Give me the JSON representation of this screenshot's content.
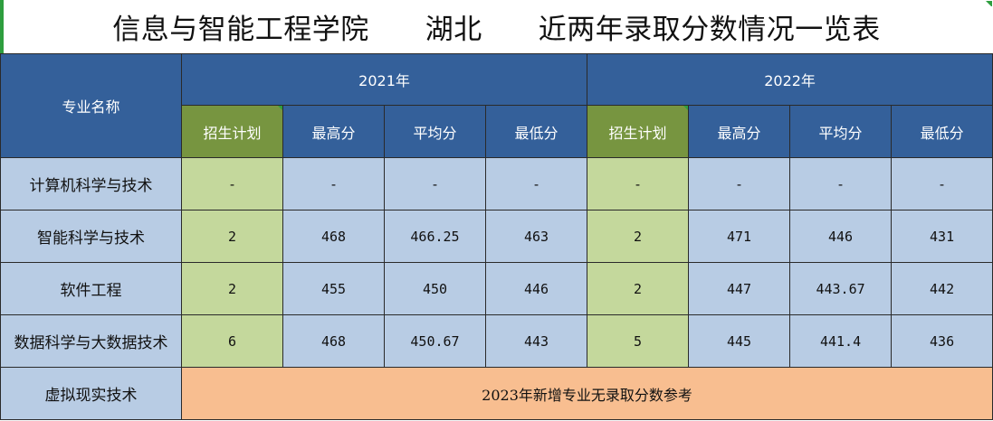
{
  "title": {
    "part1": "信息与智能工程学院",
    "part2": "湖北",
    "part3": "近两年录取分数情况一览表"
  },
  "table": {
    "major_header": "专业名称",
    "years": [
      "2021年",
      "2022年"
    ],
    "sub_headers": [
      "招生计划",
      "最高分",
      "平均分",
      "最低分"
    ],
    "rows": [
      {
        "name": "计算机科学与技术",
        "y2021": [
          "-",
          "-",
          "-",
          "-"
        ],
        "y2022": [
          "-",
          "-",
          "-",
          "-"
        ]
      },
      {
        "name": "智能科学与技术",
        "y2021": [
          "2",
          "468",
          "466.25",
          "463"
        ],
        "y2022": [
          "2",
          "471",
          "446",
          "431"
        ]
      },
      {
        "name": "软件工程",
        "y2021": [
          "2",
          "455",
          "450",
          "446"
        ],
        "y2022": [
          "2",
          "447",
          "443.67",
          "442"
        ]
      },
      {
        "name": "数据科学与大数据技术",
        "y2021": [
          "6",
          "468",
          "450.67",
          "443"
        ],
        "y2022": [
          "5",
          "445",
          "441.4",
          "436"
        ]
      }
    ],
    "last_row": {
      "name": "虚拟现实技术",
      "note": "2023年新增专业无录取分数参考"
    }
  },
  "colors": {
    "header_blue": "#34609a",
    "plan_green": "#779540",
    "cell_blue": "#b8cce4",
    "cell_green": "#c4d89c",
    "note_orange": "#f8be90"
  }
}
